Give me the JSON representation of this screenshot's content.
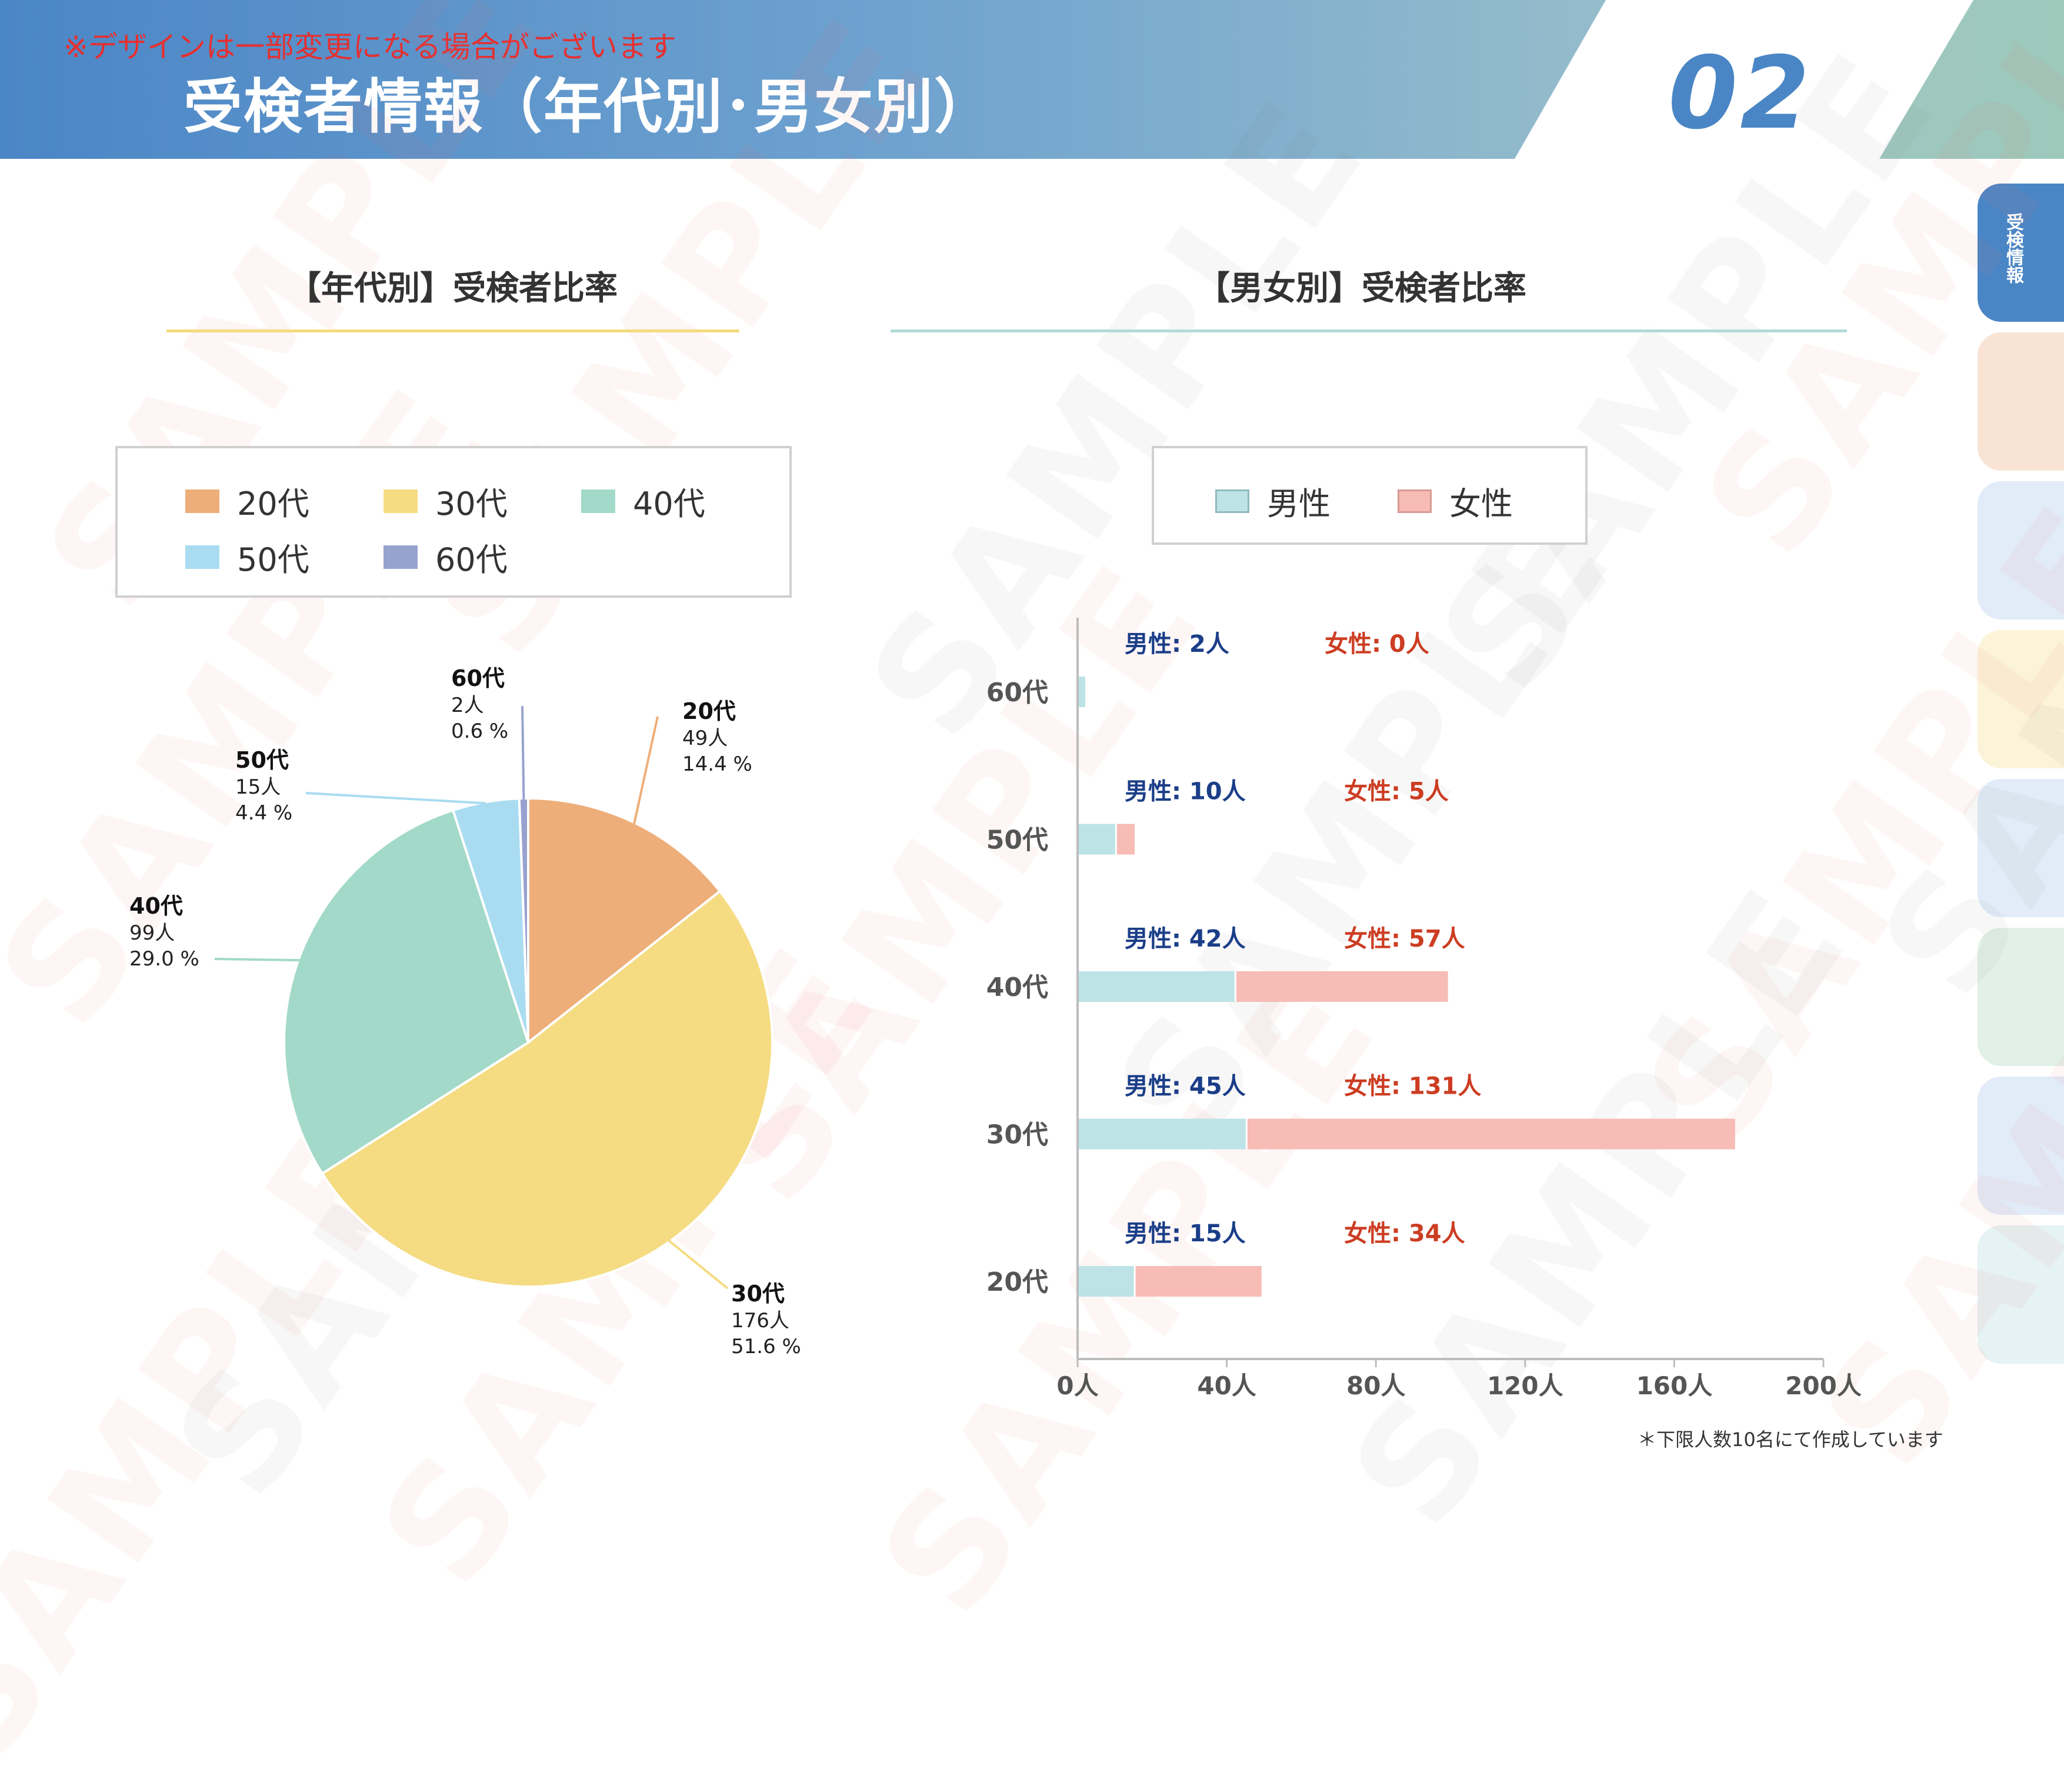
{
  "header": {
    "notice": "※デザインは一部変更になる場合がございます",
    "title": "受検者情報（年代別･男女別）",
    "page_number": "02"
  },
  "side_tabs": [
    {
      "label": "受検情報",
      "color": "#4a86c5",
      "active": true
    },
    {
      "label": "",
      "color": "#f8e3d4"
    },
    {
      "label": "",
      "color": "#e1ecf8"
    },
    {
      "label": "",
      "color": "#fbf4d8"
    },
    {
      "label": "",
      "color": "#e1ecf8"
    },
    {
      "label": "",
      "color": "#e2f1e8"
    },
    {
      "label": "",
      "color": "#e1ecf8"
    },
    {
      "label": "",
      "color": "#e6f3f4"
    }
  ],
  "watermark_text": "SAMPLE",
  "footnote": "＊下限人数10名にて作成しています",
  "colors": {
    "age_20": "#eeae79",
    "age_30": "#f5dc82",
    "age_40": "#a3d9c8",
    "age_50": "#a9dcf1",
    "age_60": "#98a2cf",
    "male": "#bde3e7",
    "female": "#f6bcb5",
    "male_label": "#1b3e88",
    "female_label": "#cc3d22",
    "title_rule_left": "#f4dc7c",
    "title_rule_right": "#b2dbd7"
  },
  "chart_data": [
    {
      "type": "pie",
      "title": "【年代別】受検者比率",
      "legend": [
        "20代",
        "30代",
        "40代",
        "50代",
        "60代"
      ],
      "slices": [
        {
          "label": "20代",
          "count": "49人",
          "percent": "14.4 %",
          "value": 49
        },
        {
          "label": "30代",
          "count": "176人",
          "percent": "51.6 %",
          "value": 176
        },
        {
          "label": "40代",
          "count": "99人",
          "percent": "29.0 %",
          "value": 99
        },
        {
          "label": "50代",
          "count": "15人",
          "percent": "4.4 %",
          "value": 15
        },
        {
          "label": "60代",
          "count": "2人",
          "percent": "0.6 %",
          "value": 2
        }
      ]
    },
    {
      "type": "bar",
      "orientation": "horizontal",
      "stacked": true,
      "title": "【男女別】受検者比率",
      "legend": [
        "男性",
        "女性"
      ],
      "categories": [
        "20代",
        "30代",
        "40代",
        "50代",
        "60代"
      ],
      "series": [
        {
          "name": "男性",
          "values": [
            15,
            45,
            42,
            10,
            2
          ],
          "labels": [
            "男性: 15人",
            "男性: 45人",
            "男性: 42人",
            "男性: 10人",
            "男性: 2人"
          ]
        },
        {
          "name": "女性",
          "values": [
            34,
            131,
            57,
            5,
            0
          ],
          "labels": [
            "女性: 34人",
            "女性: 131人",
            "女性: 57人",
            "女性: 5人",
            "女性: 0人"
          ]
        }
      ],
      "xlim": [
        0,
        200
      ],
      "xticks": [
        "0人",
        "40人",
        "80人",
        "120人",
        "160人",
        "200人"
      ]
    }
  ]
}
